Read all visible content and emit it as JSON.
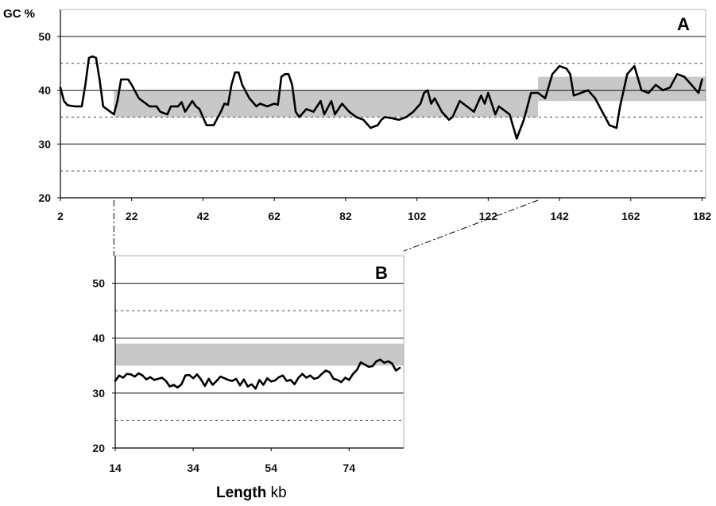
{
  "chart_data": [
    {
      "panel": "A",
      "type": "line",
      "ylabel": "GC %",
      "ylim": [
        20,
        55
      ],
      "xlim": [
        2,
        183
      ],
      "yticks": [
        20,
        30,
        40,
        50
      ],
      "xticks": [
        2,
        22,
        42,
        62,
        82,
        102,
        122,
        142,
        162,
        182
      ],
      "solid_gridlines": [
        30,
        40,
        50
      ],
      "dashed_gridlines": [
        25,
        35,
        45
      ],
      "shaded_bands": [
        {
          "x": [
            17,
            136
          ],
          "y": [
            35,
            40
          ]
        },
        {
          "x": [
            136,
            183
          ],
          "y": [
            38,
            42.5
          ]
        }
      ],
      "series": [
        {
          "x": [
            2,
            3,
            4,
            6,
            8,
            9,
            10,
            11,
            12,
            13,
            14,
            16,
            17,
            18,
            19,
            21,
            22,
            24,
            25,
            27,
            29,
            30,
            32,
            33,
            35,
            36,
            37,
            39,
            40,
            41,
            43,
            45,
            47,
            48,
            49,
            50,
            51,
            52,
            53,
            55,
            57,
            58,
            60,
            62,
            63,
            64,
            65,
            66,
            67,
            68,
            69,
            71,
            73,
            75,
            76,
            78,
            79,
            81,
            83,
            85,
            87,
            89,
            91,
            92,
            93,
            95,
            97,
            99,
            101,
            103,
            104,
            105,
            106,
            107,
            109,
            111,
            112,
            114,
            116,
            118,
            120,
            121,
            122,
            124,
            125,
            126,
            128,
            130,
            132,
            133,
            134,
            136,
            138,
            140,
            142,
            144,
            145,
            146,
            148,
            150,
            152,
            154,
            156,
            158,
            159,
            161,
            163,
            165,
            167,
            169,
            171,
            173,
            175,
            177,
            179,
            181,
            182
          ],
          "values": [
            40.5,
            38,
            37.2,
            37,
            37,
            41,
            46,
            46.3,
            46,
            42,
            37,
            36,
            35.5,
            38,
            42,
            42,
            41,
            38.5,
            38,
            37,
            37,
            36,
            35.5,
            37,
            37,
            37.8,
            36,
            38,
            37,
            36.5,
            33.5,
            33.5,
            36,
            37.5,
            37.3,
            41,
            43.3,
            43.3,
            41,
            38.5,
            37,
            37.5,
            37,
            37.5,
            37.3,
            42.5,
            43,
            43,
            41,
            36,
            35,
            36.5,
            36,
            38,
            35.5,
            38,
            35.5,
            37.5,
            36,
            35,
            34.5,
            33,
            33.5,
            34.5,
            35,
            34.8,
            34.5,
            35,
            36,
            37.5,
            39.5,
            40,
            37.5,
            38.5,
            36,
            34.5,
            35,
            38,
            37,
            36,
            39,
            37.5,
            39.5,
            35.5,
            37,
            36.5,
            35.5,
            31,
            34.5,
            37,
            39.5,
            39.5,
            38.5,
            43,
            44.5,
            44,
            43,
            39,
            39.5,
            40,
            38.5,
            36,
            33.5,
            33,
            37,
            43,
            44.5,
            40,
            39.5,
            41,
            40,
            40.5,
            43,
            42.5,
            41,
            39.5,
            42
          ]
        }
      ]
    },
    {
      "panel": "B",
      "type": "line",
      "ylim": [
        20,
        55
      ],
      "xlim": [
        14,
        88
      ],
      "yticks": [
        20,
        30,
        40,
        50
      ],
      "xticks": [
        14,
        34,
        54,
        74
      ],
      "solid_gridlines": [
        30,
        40,
        50
      ],
      "dashed_gridlines": [
        25,
        45
      ],
      "shaded_bands": [
        {
          "x": [
            14,
            88
          ],
          "y": [
            35,
            39
          ]
        }
      ],
      "series": [
        {
          "x": [
            14,
            15,
            16,
            17,
            18,
            19,
            20,
            21,
            22,
            23,
            24,
            25,
            26,
            27,
            28,
            29,
            30,
            31,
            32,
            33,
            34,
            35,
            36,
            37,
            38,
            39,
            40,
            41,
            42,
            43,
            44,
            45,
            46,
            47,
            48,
            49,
            50,
            51,
            52,
            53,
            54,
            55,
            56,
            57,
            58,
            59,
            60,
            61,
            62,
            63,
            64,
            65,
            66,
            67,
            68,
            69,
            70,
            71,
            72,
            73,
            74,
            75,
            76,
            77,
            78,
            79,
            80,
            81,
            82,
            83,
            84,
            85,
            86,
            87
          ],
          "values": [
            32.2,
            33.2,
            32.8,
            33.5,
            33.4,
            33,
            33.6,
            33.2,
            32.5,
            32.9,
            32.4,
            32.6,
            32.8,
            32.2,
            31.2,
            31.5,
            31,
            31.6,
            33.2,
            33.3,
            32.7,
            33.4,
            32.5,
            31.3,
            32.6,
            31.5,
            32.2,
            33,
            32.7,
            32.4,
            32.2,
            32.6,
            31.4,
            32.5,
            31.2,
            31.6,
            30.8,
            32.4,
            31.5,
            32.7,
            32.1,
            32.3,
            32.9,
            33.2,
            32.2,
            32.4,
            31.6,
            32.8,
            33.5,
            32.8,
            33.2,
            32.6,
            32.8,
            33.5,
            34.1,
            33.8,
            32.6,
            32.4,
            32,
            32.8,
            32.4,
            33.5,
            34.2,
            35.6,
            35.2,
            34.8,
            34.9,
            35.8,
            36.1,
            35.5,
            35.8,
            35.4,
            34.1,
            34.6
          ]
        }
      ]
    }
  ],
  "labels": {
    "ylabel": "GC %",
    "panelA": "A",
    "panelB": "B",
    "xlabel_bold": "Length",
    "xlabel_unit": "kb"
  }
}
